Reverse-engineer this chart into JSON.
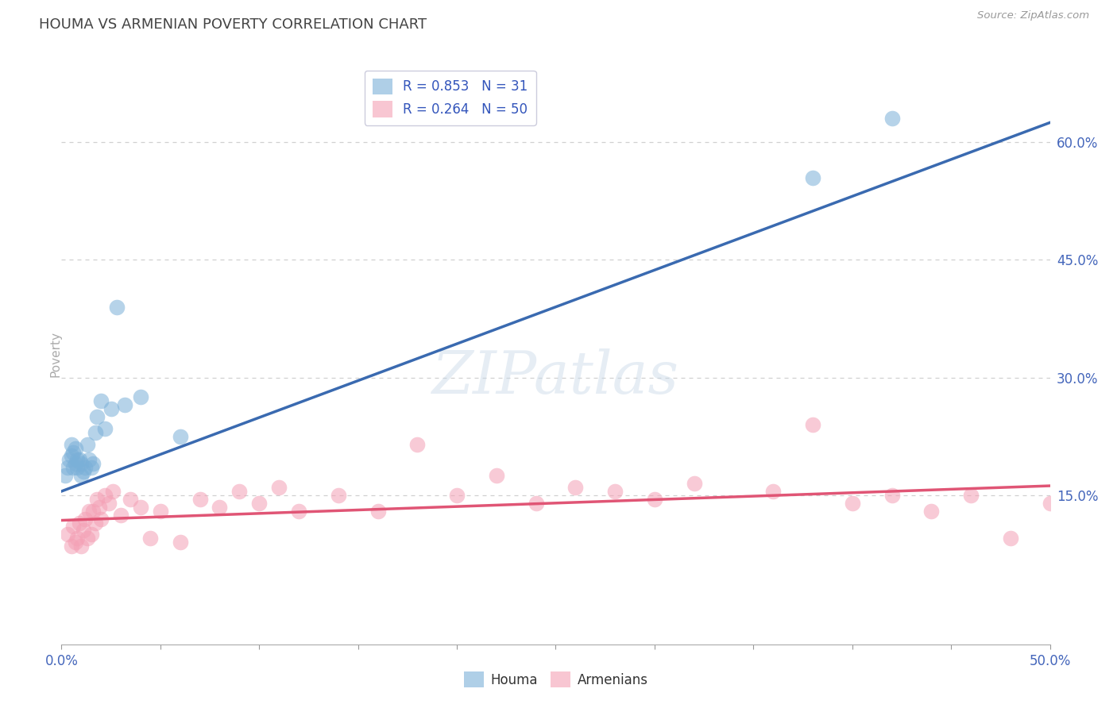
{
  "title": "HOUMA VS ARMENIAN POVERTY CORRELATION CHART",
  "source": "Source: ZipAtlas.com",
  "ylabel": "Poverty",
  "xlim": [
    0.0,
    0.5
  ],
  "ylim": [
    -0.04,
    0.7
  ],
  "yticks_right": [
    0.15,
    0.3,
    0.45,
    0.6
  ],
  "ytick_labels_right": [
    "15.0%",
    "30.0%",
    "45.0%",
    "60.0%"
  ],
  "grid_color": "#d0d0d0",
  "background_color": "#ffffff",
  "houma_color": "#7ab0d8",
  "armenian_color": "#f4a0b5",
  "houma_line_color": "#3a6ab0",
  "armenian_line_color": "#e05575",
  "houma_R": 0.853,
  "houma_N": 31,
  "armenian_R": 0.264,
  "armenian_N": 50,
  "houma_line_x0": 0.0,
  "houma_line_y0": 0.155,
  "houma_line_x1": 0.5,
  "houma_line_y1": 0.625,
  "armenian_line_x0": 0.0,
  "armenian_line_y0": 0.118,
  "armenian_line_x1": 0.5,
  "armenian_line_y1": 0.162,
  "houma_x": [
    0.002,
    0.003,
    0.004,
    0.005,
    0.005,
    0.006,
    0.006,
    0.007,
    0.007,
    0.008,
    0.008,
    0.009,
    0.01,
    0.01,
    0.011,
    0.012,
    0.013,
    0.014,
    0.015,
    0.016,
    0.017,
    0.018,
    0.02,
    0.022,
    0.025,
    0.028,
    0.032,
    0.04,
    0.06,
    0.38,
    0.42
  ],
  "houma_y": [
    0.175,
    0.185,
    0.195,
    0.2,
    0.215,
    0.185,
    0.205,
    0.19,
    0.21,
    0.185,
    0.195,
    0.195,
    0.175,
    0.19,
    0.18,
    0.185,
    0.215,
    0.195,
    0.185,
    0.19,
    0.23,
    0.25,
    0.27,
    0.235,
    0.26,
    0.39,
    0.265,
    0.275,
    0.225,
    0.555,
    0.63
  ],
  "armenian_x": [
    0.003,
    0.005,
    0.006,
    0.007,
    0.008,
    0.009,
    0.01,
    0.011,
    0.012,
    0.013,
    0.014,
    0.015,
    0.016,
    0.017,
    0.018,
    0.019,
    0.02,
    0.022,
    0.024,
    0.026,
    0.03,
    0.035,
    0.04,
    0.045,
    0.05,
    0.06,
    0.07,
    0.08,
    0.09,
    0.1,
    0.11,
    0.12,
    0.14,
    0.16,
    0.18,
    0.2,
    0.22,
    0.24,
    0.26,
    0.28,
    0.3,
    0.32,
    0.36,
    0.38,
    0.4,
    0.42,
    0.44,
    0.46,
    0.48,
    0.5
  ],
  "armenian_y": [
    0.1,
    0.085,
    0.11,
    0.09,
    0.095,
    0.115,
    0.085,
    0.105,
    0.12,
    0.095,
    0.13,
    0.1,
    0.13,
    0.115,
    0.145,
    0.135,
    0.12,
    0.15,
    0.14,
    0.155,
    0.125,
    0.145,
    0.135,
    0.095,
    0.13,
    0.09,
    0.145,
    0.135,
    0.155,
    0.14,
    0.16,
    0.13,
    0.15,
    0.13,
    0.215,
    0.15,
    0.175,
    0.14,
    0.16,
    0.155,
    0.145,
    0.165,
    0.155,
    0.24,
    0.14,
    0.15,
    0.13,
    0.15,
    0.095,
    0.14
  ]
}
